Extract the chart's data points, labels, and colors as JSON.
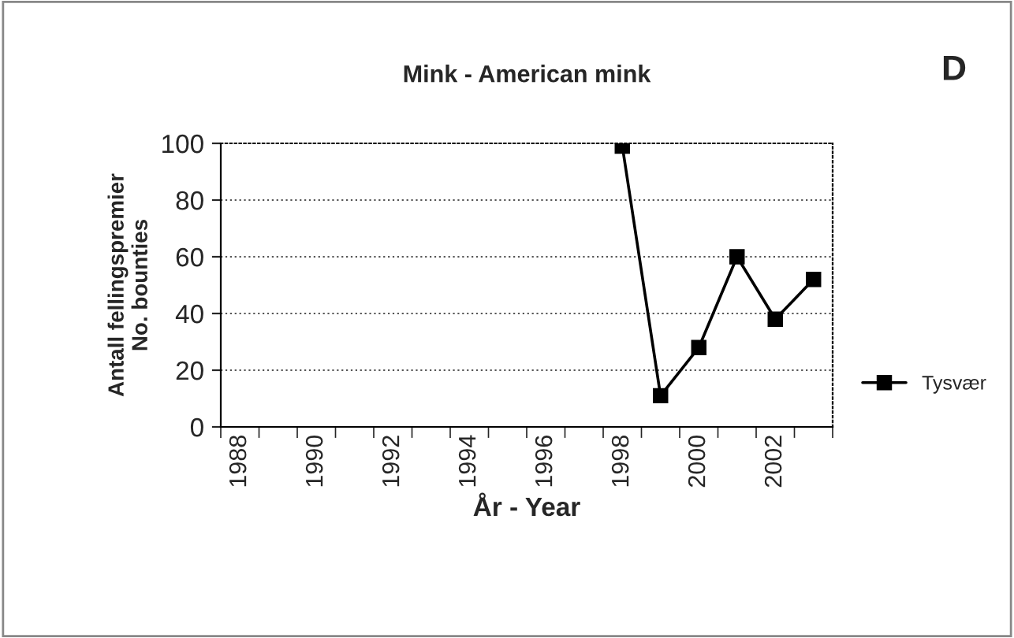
{
  "chart_data": {
    "type": "line",
    "title": "Mink - American mink",
    "xlabel": "År - Year",
    "ylabel": "Antall fellingspremier\nNo. bounties",
    "annotations": [
      "D"
    ],
    "categories": [
      "1988",
      null,
      "1990",
      null,
      "1992",
      null,
      "1994",
      null,
      "1996",
      null,
      "1998",
      null,
      "2000",
      null,
      "2002",
      null
    ],
    "series": [
      {
        "name": "Tysvær",
        "color": "#000000",
        "values": [
          null,
          null,
          null,
          null,
          null,
          null,
          null,
          null,
          null,
          null,
          99,
          11,
          28,
          60,
          38,
          52
        ]
      }
    ],
    "ylim": [
      0,
      100
    ],
    "yticks": [
      0,
      20,
      40,
      60,
      80,
      100
    ],
    "grid": "y",
    "legend": "right",
    "marker": "square",
    "line_style": "solid"
  }
}
